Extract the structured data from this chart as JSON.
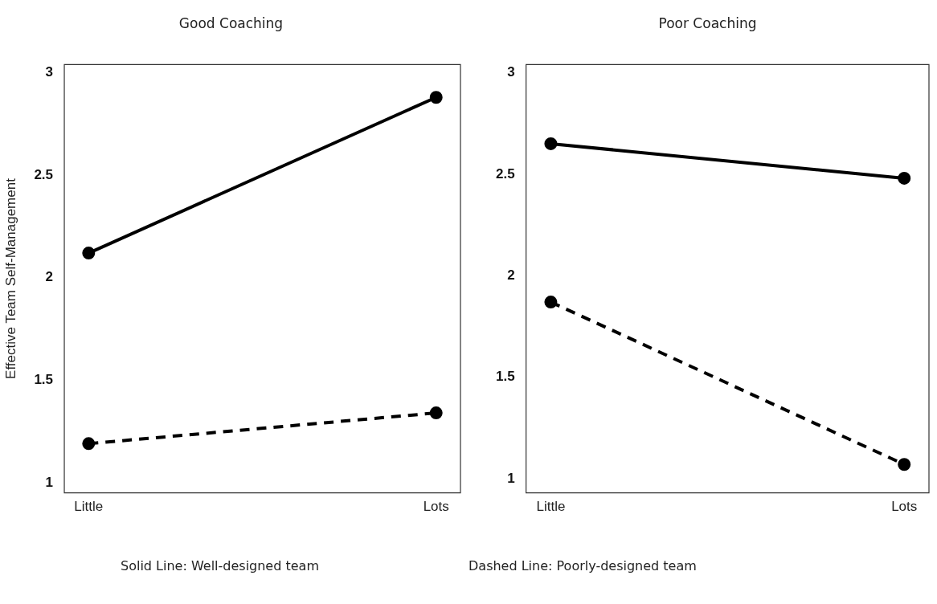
{
  "chart_data": [
    {
      "type": "line",
      "title": "Good Coaching",
      "ylabel": "Effective Team Self-Management",
      "categories": [
        "Little",
        "Lots"
      ],
      "series": [
        {
          "color": "#000000",
          "values": [
            2.12,
            2.88
          ],
          "line_style": "solid"
        },
        {
          "color": "#000000",
          "values": [
            1.19,
            1.34
          ],
          "line_style": "dashed"
        }
      ],
      "ylim": [
        0.95,
        3.04
      ],
      "yticks": [
        1,
        1.5,
        2,
        2.5,
        3
      ],
      "grid": false,
      "legend": false,
      "marker": "circle",
      "annotations": [
        "Solid Line: Well-designed team"
      ]
    },
    {
      "type": "line",
      "title": "Poor Coaching",
      "categories": [
        "Little",
        "Lots"
      ],
      "series": [
        {
          "color": "#000000",
          "values": [
            2.65,
            2.48
          ],
          "line_style": "solid"
        },
        {
          "color": "#000000",
          "values": [
            1.87,
            1.07
          ],
          "line_style": "dashed"
        }
      ],
      "ylim": [
        0.93,
        3.04
      ],
      "yticks": [
        1,
        1.5,
        2,
        2.5,
        3
      ],
      "grid": false,
      "legend": false,
      "marker": "circle",
      "annotations": [
        "Dashed Line: Poorly-designed team"
      ]
    }
  ]
}
